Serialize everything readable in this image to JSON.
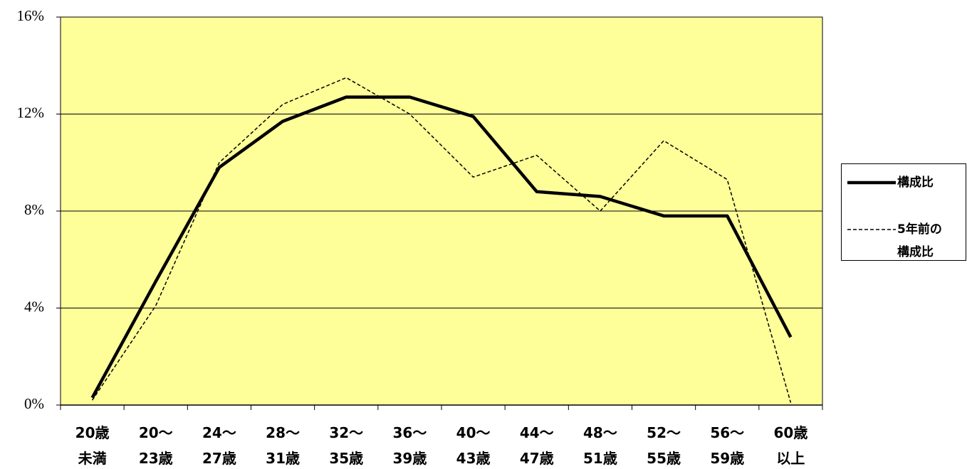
{
  "chart_data": {
    "type": "line",
    "categories": [
      [
        "20歳",
        "未満"
      ],
      [
        "20〜",
        "23歳"
      ],
      [
        "24〜",
        "27歳"
      ],
      [
        "28〜",
        "31歳"
      ],
      [
        "32〜",
        "35歳"
      ],
      [
        "36〜",
        "39歳"
      ],
      [
        "40〜",
        "43歳"
      ],
      [
        "44〜",
        "47歳"
      ],
      [
        "48〜",
        "51歳"
      ],
      [
        "52〜",
        "55歳"
      ],
      [
        "56〜",
        "59歳"
      ],
      [
        "60歳",
        "以上"
      ]
    ],
    "series": [
      {
        "name": "構成比",
        "color": "#000000",
        "dash": false,
        "values": [
          0.3,
          5.1,
          9.8,
          11.7,
          12.7,
          12.7,
          11.9,
          8.8,
          8.6,
          7.8,
          7.8,
          2.8
        ]
      },
      {
        "name": "5年前の構成比",
        "color": "#000000",
        "dash": true,
        "values": [
          0.2,
          4.1,
          10.0,
          12.4,
          13.5,
          12.0,
          9.4,
          10.3,
          8.0,
          10.9,
          9.3,
          0.1
        ]
      }
    ],
    "ylim": [
      0,
      16
    ],
    "yticks": [
      {
        "value": 0,
        "label": "0%"
      },
      {
        "value": 4,
        "label": "4%"
      },
      {
        "value": 8,
        "label": "8%"
      },
      {
        "value": 12,
        "label": "12%"
      },
      {
        "value": 16,
        "label": "16%"
      }
    ],
    "grid": true,
    "plot_background": "#FFFF99",
    "legend": "right"
  }
}
